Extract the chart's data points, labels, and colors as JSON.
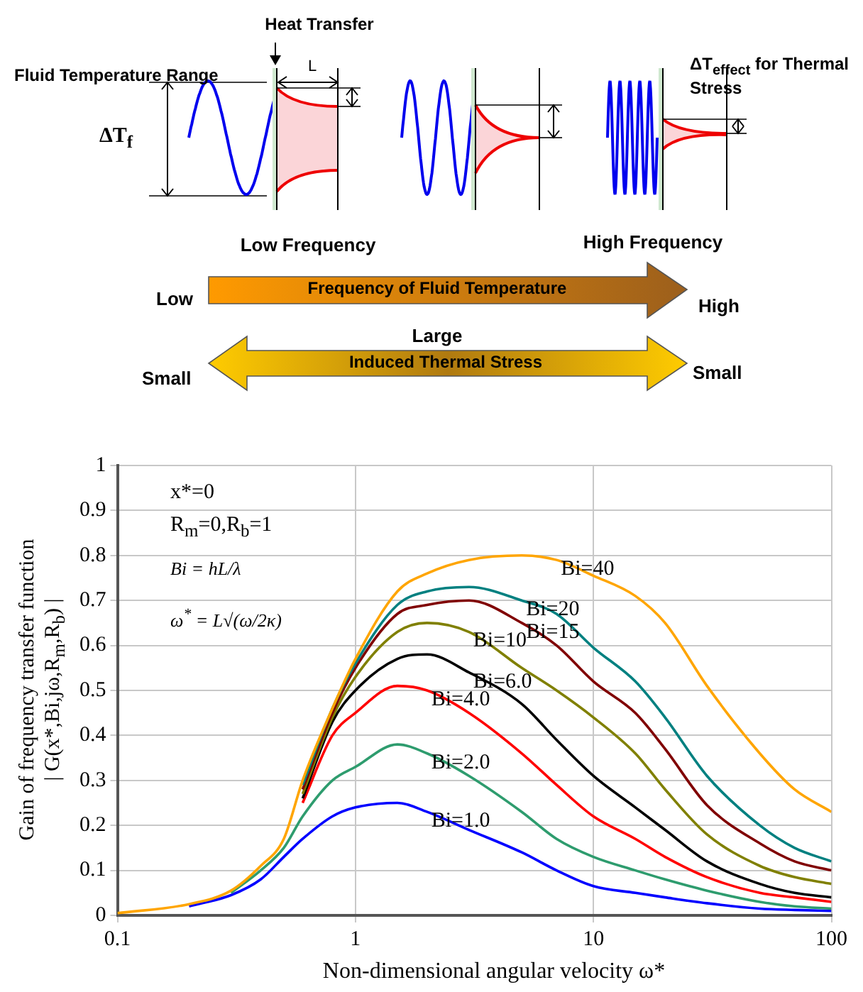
{
  "chart_data": {
    "type": "line",
    "xlabel": "Non-dimensional angular velocity ω*",
    "ylabel": "Gain of frequency transfer function\n| G(x*,Bi,jω,R$_{m}$,R$_{b}$) |",
    "annotations": [
      "Heat Transfer",
      "Fluid Temperature Range",
      "L",
      "ΔT$_{f}$",
      "ΔT$_{effect}$ for Thermal Stress",
      "Low Frequency",
      "High Frequency",
      "Low",
      "Frequency of Fluid Temperature",
      "High",
      "Large",
      "Small",
      "Induced Thermal Stress",
      "Small",
      "x*=0",
      "R$_{m}$=0,R$_{b}$=1",
      "Bi = hL/λ",
      "ω$^{*}$ = L√(ω/2κ)"
    ],
    "x": [
      0.1,
      0.2,
      0.3,
      0.4,
      0.5,
      0.6,
      0.8,
      1,
      1.5,
      2,
      3,
      5,
      7,
      10,
      15,
      20,
      30,
      50,
      70,
      100
    ],
    "series": [
      {
        "name": "Bi=1.0",
        "color": "#0000ff",
        "values": [
          null,
          0.02,
          0.045,
          0.08,
          0.13,
          0.17,
          0.22,
          0.24,
          0.25,
          0.23,
          0.19,
          0.14,
          0.1,
          0.065,
          0.05,
          0.04,
          0.027,
          0.015,
          0.012,
          0.01
        ]
      },
      {
        "name": "Bi=2.0",
        "color": "#2e9c6e",
        "values": [
          null,
          null,
          0.05,
          0.1,
          0.15,
          0.22,
          0.3,
          0.33,
          0.38,
          0.36,
          0.31,
          0.23,
          0.17,
          0.13,
          0.1,
          0.08,
          0.055,
          0.03,
          0.02,
          0.015
        ]
      },
      {
        "name": "Bi=4.0",
        "color": "#ff0000",
        "values": [
          null,
          null,
          null,
          null,
          null,
          0.25,
          0.4,
          0.45,
          0.51,
          0.5,
          0.45,
          0.36,
          0.29,
          0.22,
          0.17,
          0.13,
          0.085,
          0.05,
          0.04,
          0.03
        ]
      },
      {
        "name": "Bi=6.0",
        "color": "#000000",
        "values": [
          null,
          null,
          null,
          null,
          null,
          0.26,
          0.43,
          0.5,
          0.57,
          0.58,
          0.54,
          0.47,
          0.39,
          0.31,
          0.24,
          0.19,
          0.12,
          0.07,
          0.05,
          0.04
        ]
      },
      {
        "name": "Bi=10",
        "color": "#808000",
        "values": [
          null,
          null,
          null,
          null,
          null,
          0.27,
          0.44,
          0.53,
          0.63,
          0.65,
          0.63,
          0.55,
          0.5,
          0.44,
          0.36,
          0.28,
          0.18,
          0.11,
          0.085,
          0.07
        ]
      },
      {
        "name": "Bi=15",
        "color": "#800000",
        "values": [
          null,
          null,
          null,
          null,
          null,
          0.28,
          0.45,
          0.55,
          0.67,
          0.69,
          0.7,
          0.65,
          0.6,
          0.52,
          0.45,
          0.37,
          0.245,
          0.16,
          0.12,
          0.1
        ]
      },
      {
        "name": "Bi=20",
        "color": "#008080",
        "values": [
          null,
          null,
          null,
          null,
          null,
          0.29,
          0.46,
          0.56,
          0.69,
          0.72,
          0.73,
          0.7,
          0.67,
          0.595,
          0.52,
          0.44,
          0.31,
          0.2,
          0.15,
          0.12
        ]
      },
      {
        "name": "Bi=40",
        "color": "#ffa500",
        "values": [
          0.005,
          0.025,
          0.055,
          0.11,
          0.17,
          0.3,
          0.46,
          0.57,
          0.72,
          0.76,
          0.79,
          0.8,
          0.79,
          0.755,
          0.71,
          0.65,
          0.51,
          0.36,
          0.28,
          0.23
        ]
      }
    ],
    "log": "x",
    "xlim": [
      0.1,
      100
    ],
    "xticks": [
      0.1,
      1,
      10,
      100
    ],
    "ylim": [
      0,
      1
    ],
    "yticks": [
      0,
      0.1,
      0.2,
      0.3,
      0.4,
      0.5,
      0.6,
      0.7,
      0.8,
      0.9,
      1
    ],
    "grid": true,
    "legend": false
  }
}
